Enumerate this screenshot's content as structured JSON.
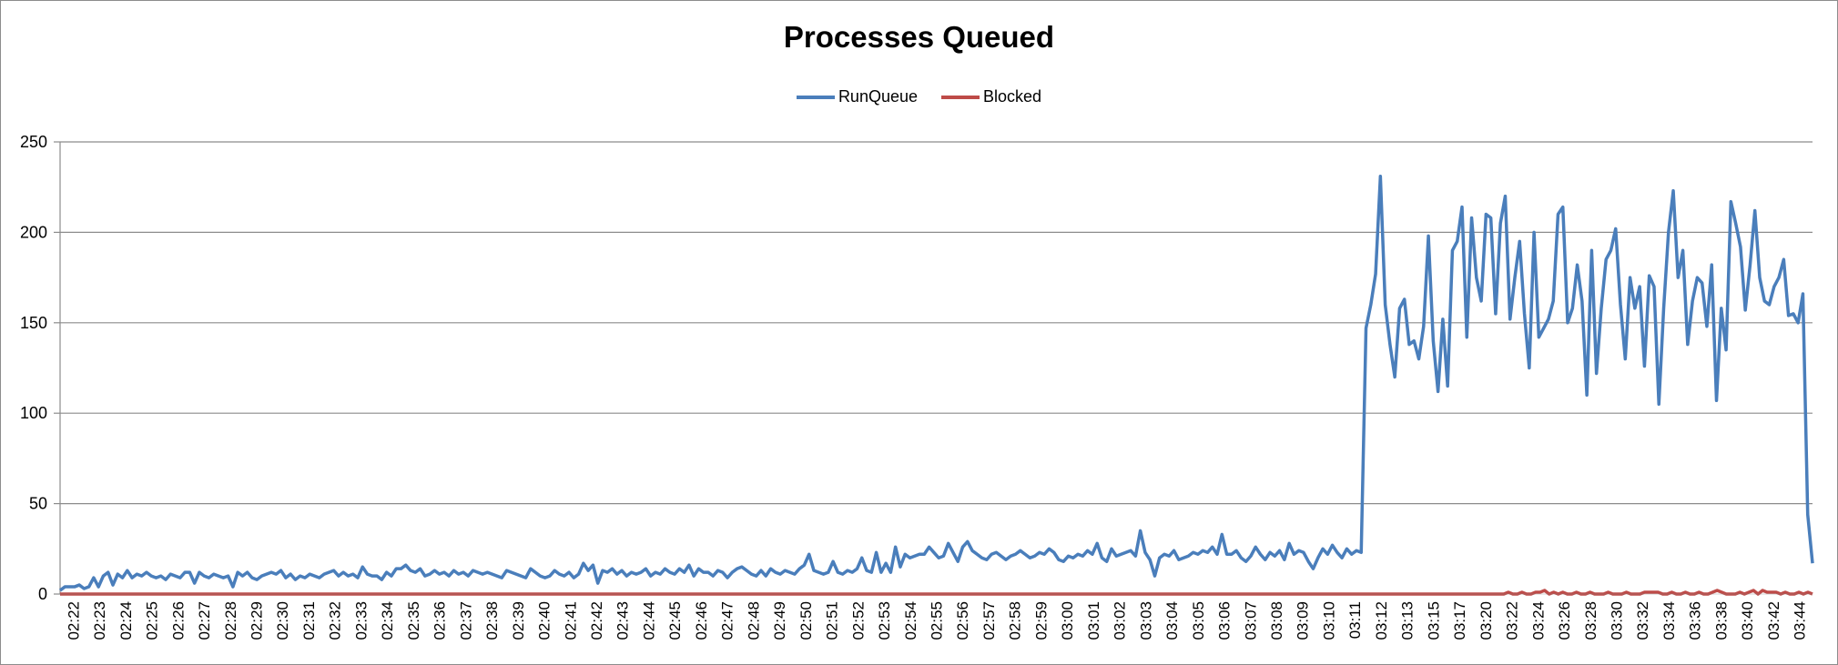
{
  "chart_data": {
    "type": "line",
    "title": "Processes Queued",
    "xlabel": "",
    "ylabel": "",
    "ylim": [
      0,
      250
    ],
    "yticks": [
      0,
      50,
      100,
      150,
      200,
      250
    ],
    "grid": true,
    "legend_position": "top-center",
    "x_tick_labels": [
      "02:22",
      "02:23",
      "02:24",
      "02:25",
      "02:26",
      "02:27",
      "02:28",
      "02:29",
      "02:30",
      "02:31",
      "02:32",
      "02:33",
      "02:34",
      "02:35",
      "02:36",
      "02:37",
      "02:38",
      "02:39",
      "02:40",
      "02:41",
      "02:42",
      "02:43",
      "02:44",
      "02:45",
      "02:46",
      "02:47",
      "02:48",
      "02:49",
      "02:50",
      "02:51",
      "02:52",
      "02:53",
      "02:54",
      "02:55",
      "02:56",
      "02:57",
      "02:58",
      "02:59",
      "03:00",
      "03:01",
      "03:02",
      "03:03",
      "03:04",
      "03:05",
      "03:06",
      "03:07",
      "03:08",
      "03:09",
      "03:10",
      "03:11",
      "03:12",
      "03:13",
      "03:15",
      "03:17",
      "03:20",
      "03:22",
      "03:24",
      "03:26",
      "03:28",
      "03:30",
      "03:32",
      "03:34",
      "03:36",
      "03:38",
      "03:40",
      "03:42",
      "03:44"
    ],
    "series": [
      {
        "name": "RunQueue",
        "color": "#4a7ebb",
        "values": [
          2,
          4,
          4,
          4,
          5,
          3,
          4,
          9,
          4,
          10,
          12,
          5,
          11,
          9,
          13,
          9,
          11,
          10,
          12,
          10,
          9,
          10,
          8,
          11,
          10,
          9,
          12,
          12,
          6,
          12,
          10,
          9,
          11,
          10,
          9,
          10,
          4,
          12,
          10,
          12,
          9,
          8,
          10,
          11,
          12,
          11,
          13,
          9,
          11,
          8,
          10,
          9,
          11,
          10,
          9,
          11,
          12,
          13,
          10,
          12,
          10,
          11,
          9,
          15,
          11,
          10,
          10,
          8,
          12,
          10,
          14,
          14,
          16,
          13,
          12,
          14,
          10,
          11,
          13,
          11,
          12,
          10,
          13,
          11,
          12,
          10,
          13,
          12,
          11,
          12,
          11,
          10,
          9,
          13,
          12,
          11,
          10,
          9,
          14,
          12,
          10,
          9,
          10,
          13,
          11,
          10,
          12,
          9,
          11,
          17,
          13,
          16,
          6,
          13,
          12,
          14,
          11,
          13,
          10,
          12,
          11,
          12,
          14,
          10,
          12,
          11,
          14,
          12,
          11,
          14,
          12,
          16,
          10,
          14,
          12,
          12,
          10,
          13,
          12,
          9,
          12,
          14,
          15,
          13,
          11,
          10,
          13,
          10,
          14,
          12,
          11,
          13,
          12,
          11,
          14,
          16,
          22,
          13,
          12,
          11,
          12,
          18,
          12,
          11,
          13,
          12,
          14,
          20,
          13,
          12,
          23,
          12,
          17,
          12,
          26,
          15,
          22,
          20,
          21,
          22,
          22,
          26,
          23,
          20,
          21,
          28,
          23,
          18,
          26,
          29,
          24,
          22,
          20,
          19,
          22,
          23,
          21,
          19,
          21,
          22,
          24,
          22,
          20,
          21,
          23,
          22,
          25,
          23,
          19,
          18,
          21,
          20,
          22,
          21,
          24,
          22,
          28,
          20,
          18,
          25,
          21,
          22,
          23,
          24,
          21,
          35,
          23,
          19,
          10,
          20,
          22,
          21,
          24,
          19,
          20,
          21,
          23,
          22,
          24,
          23,
          26,
          22,
          33,
          22,
          22,
          24,
          20,
          18,
          21,
          26,
          22,
          19,
          23,
          21,
          24,
          19,
          28,
          22,
          24,
          23,
          18,
          14,
          20,
          25,
          22,
          27,
          23,
          20,
          25,
          22,
          24,
          23,
          147,
          160,
          177,
          231,
          160,
          138,
          120,
          158,
          163,
          138,
          140,
          130,
          148,
          198,
          140,
          112,
          152,
          115,
          190,
          195,
          214,
          142,
          208,
          175,
          162,
          210,
          208,
          155,
          205,
          220,
          152,
          175,
          195,
          155,
          125,
          200,
          142,
          147,
          152,
          162,
          210,
          214,
          150,
          158,
          182,
          162,
          110,
          190,
          122,
          158,
          185,
          190,
          202,
          160,
          130,
          175,
          158,
          170,
          126,
          176,
          170,
          105,
          158,
          200,
          223,
          175,
          190,
          138,
          162,
          175,
          172,
          148,
          182,
          107,
          158,
          135,
          217,
          205,
          192,
          157,
          182,
          212,
          175,
          162,
          160,
          170,
          175,
          185,
          154,
          155,
          150,
          166,
          44,
          17
        ]
      },
      {
        "name": "Blocked",
        "color": "#be4b48",
        "values": [
          0,
          0,
          0,
          0,
          0,
          0,
          0,
          0,
          0,
          0,
          0,
          0,
          0,
          0,
          0,
          0,
          0,
          0,
          0,
          0,
          0,
          0,
          0,
          0,
          0,
          0,
          0,
          0,
          0,
          0,
          0,
          0,
          0,
          0,
          0,
          0,
          0,
          0,
          0,
          0,
          0,
          0,
          0,
          0,
          0,
          0,
          0,
          0,
          0,
          0,
          0,
          0,
          0,
          0,
          0,
          0,
          0,
          0,
          0,
          0,
          0,
          0,
          0,
          0,
          0,
          0,
          0,
          0,
          0,
          0,
          0,
          0,
          0,
          0,
          0,
          0,
          0,
          0,
          0,
          0,
          0,
          0,
          0,
          0,
          0,
          0,
          0,
          0,
          0,
          0,
          0,
          0,
          0,
          0,
          0,
          0,
          0,
          0,
          0,
          0,
          0,
          0,
          0,
          0,
          0,
          0,
          0,
          0,
          0,
          0,
          0,
          0,
          0,
          0,
          0,
          0,
          0,
          0,
          0,
          0,
          0,
          0,
          0,
          0,
          0,
          0,
          0,
          0,
          0,
          0,
          0,
          0,
          0,
          0,
          0,
          0,
          0,
          0,
          0,
          0,
          0,
          0,
          0,
          0,
          0,
          0,
          0,
          0,
          0,
          0,
          0,
          0,
          0,
          0,
          0,
          0,
          0,
          0,
          0,
          0,
          0,
          0,
          0,
          0,
          0,
          0,
          0,
          0,
          0,
          0,
          0,
          0,
          0,
          0,
          0,
          0,
          0,
          0,
          0,
          0,
          0,
          0,
          0,
          0,
          0,
          0,
          0,
          0,
          0,
          0,
          0,
          0,
          0,
          0,
          0,
          0,
          0,
          0,
          0,
          0,
          0,
          0,
          0,
          0,
          0,
          0,
          0,
          0,
          0,
          0,
          0,
          0,
          0,
          0,
          0,
          0,
          0,
          0,
          0,
          0,
          0,
          0,
          0,
          0,
          0,
          0,
          0,
          0,
          0,
          0,
          0,
          0,
          0,
          0,
          0,
          0,
          0,
          0,
          0,
          0,
          0,
          0,
          0,
          0,
          0,
          0,
          0,
          0,
          0,
          0,
          0,
          0,
          0,
          0,
          0,
          0,
          0,
          0,
          0,
          0,
          0,
          0,
          0,
          0,
          0,
          0,
          0,
          0,
          0,
          0,
          0,
          0,
          0,
          0,
          0,
          0,
          0,
          0,
          0,
          0,
          0,
          0,
          0,
          0,
          0,
          0,
          0,
          0,
          0,
          0,
          0,
          0,
          0,
          0,
          0,
          0,
          0,
          0,
          0,
          0,
          0,
          0,
          0,
          0,
          0,
          0,
          0,
          0,
          0,
          0,
          0,
          0,
          0,
          0,
          0,
          0,
          0,
          0,
          0,
          1,
          0,
          0,
          1,
          0,
          0,
          1,
          1,
          2,
          0,
          1,
          0,
          1,
          0,
          0,
          1,
          0,
          0,
          1,
          0,
          0,
          0,
          1,
          0,
          0,
          0,
          1,
          0,
          0,
          0,
          1,
          1,
          1,
          1,
          0,
          0,
          1,
          0,
          0,
          1,
          0,
          0,
          1,
          0,
          0,
          1,
          2,
          1,
          0,
          0,
          0,
          1,
          0,
          1,
          2,
          0,
          2,
          1,
          1,
          1,
          0,
          1,
          0,
          0,
          1,
          0,
          1,
          0
        ]
      }
    ]
  }
}
